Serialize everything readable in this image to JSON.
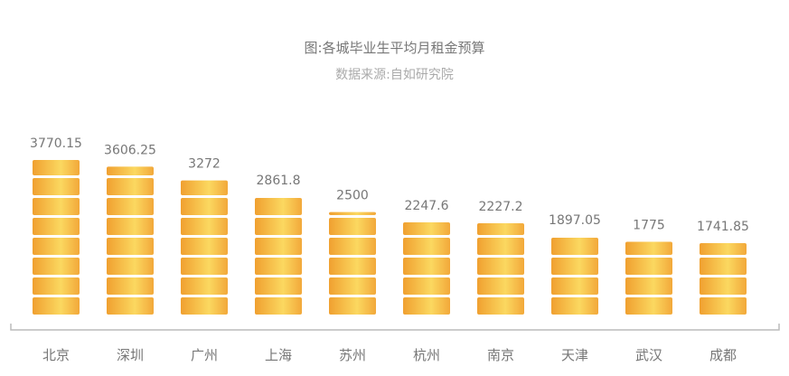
{
  "chart_data": {
    "type": "bar",
    "title": "图:各城毕业生平均月租金预算",
    "subtitle": "数据来源:自如研究院",
    "categories": [
      "北京",
      "深圳",
      "广州",
      "上海",
      "苏州",
      "杭州",
      "南京",
      "天津",
      "武汉",
      "成都"
    ],
    "values": [
      3770.15,
      3606.25,
      3272,
      2861.8,
      2500,
      2247.6,
      2227.2,
      1897.05,
      1775,
      1741.85
    ],
    "value_labels": [
      "3770.15",
      "3606.25",
      "3272",
      "2861.8",
      "2500",
      "2247.6",
      "2227.2",
      "1897.05",
      "1775",
      "1741.85"
    ],
    "xlabel": "",
    "ylabel": "",
    "ylim": [
      0,
      3770.15
    ],
    "grid": false,
    "colors": {
      "bar_dark": "#F0A030",
      "bar_light": "#FBD860",
      "text": "#777777",
      "axis": "#bbbbbb"
    }
  }
}
